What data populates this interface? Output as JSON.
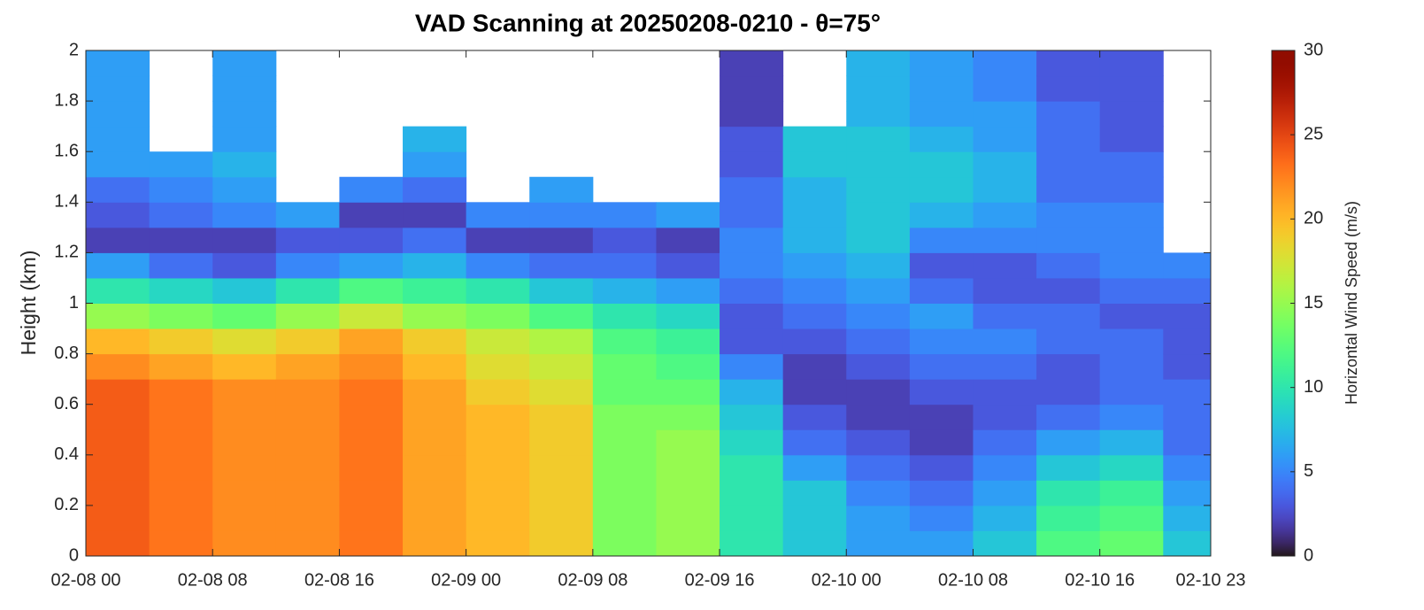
{
  "chart_data": {
    "type": "heatmap",
    "title": "VAD Scanning at 20250208-0210 - θ=75°",
    "y_label": "Height (km)",
    "colorbar_label": "Horizontal Wind Speed (m/s)",
    "colormap": "turbo",
    "x": [
      0,
      4,
      8,
      12,
      16,
      20,
      24,
      28,
      32,
      36,
      40,
      44,
      48,
      52,
      56,
      60,
      64,
      68
    ],
    "x_step": 4,
    "y": [
      0,
      0.1,
      0.2,
      0.3,
      0.4,
      0.5,
      0.6,
      0.7,
      0.8,
      0.9,
      1,
      1.1,
      1.2,
      1.3,
      1.4,
      1.5,
      1.6,
      1.7,
      1.8,
      1.9
    ],
    "y_step": 0.1,
    "values": [
      [
        24,
        24,
        24,
        24,
        24,
        24,
        24,
        22,
        20,
        15,
        10,
        6,
        2,
        3,
        4,
        6,
        6,
        6,
        6,
        6
      ],
      [
        23,
        23,
        23,
        23,
        23,
        23,
        23,
        21,
        19,
        14,
        9,
        4,
        2,
        4,
        5,
        6,
        null,
        null,
        null,
        null
      ],
      [
        22,
        22,
        22,
        22,
        22,
        22,
        22,
        20,
        18,
        13,
        8,
        3,
        2,
        5,
        6,
        7,
        6,
        6,
        6,
        6
      ],
      [
        22,
        22,
        22,
        22,
        22,
        22,
        22,
        21,
        19,
        15,
        10,
        5,
        3,
        6,
        null,
        null,
        null,
        null,
        null,
        null
      ],
      [
        23,
        23,
        23,
        23,
        23,
        23,
        23,
        22,
        21,
        17,
        12,
        6,
        3,
        2,
        5,
        null,
        null,
        null,
        null,
        null
      ],
      [
        21,
        21,
        21,
        21,
        21,
        21,
        21,
        20,
        19,
        15,
        11,
        7,
        4,
        2,
        4,
        6,
        7,
        null,
        null,
        null
      ],
      [
        20,
        20,
        20,
        20,
        20,
        20,
        19,
        18,
        17,
        14,
        10,
        5,
        2,
        5,
        null,
        null,
        null,
        null,
        null,
        null
      ],
      [
        19,
        19,
        19,
        19,
        19,
        19,
        18,
        17,
        16,
        12,
        8,
        4,
        2,
        5,
        6,
        null,
        null,
        null,
        null,
        null
      ],
      [
        14,
        14,
        14,
        14,
        14,
        14,
        13,
        13,
        12,
        10,
        7,
        4,
        3,
        5,
        null,
        null,
        null,
        null,
        null,
        null
      ],
      [
        15,
        15,
        15,
        15,
        15,
        14,
        13,
        12,
        11,
        9,
        6,
        3,
        2,
        6,
        null,
        null,
        null,
        null,
        null,
        null
      ],
      [
        10,
        10,
        10,
        10,
        9,
        8,
        7,
        5,
        3,
        3,
        4,
        5,
        5,
        4,
        4,
        3,
        3,
        2,
        2,
        2
      ],
      [
        8,
        8,
        8,
        6,
        4,
        3,
        2,
        2,
        3,
        4,
        5,
        6,
        7,
        7,
        7,
        8,
        8,
        null,
        null,
        null
      ],
      [
        6,
        6,
        5,
        4,
        3,
        2,
        2,
        3,
        4,
        5,
        6,
        7,
        8,
        8,
        8,
        8,
        8,
        7,
        7,
        7
      ],
      [
        6,
        5,
        4,
        3,
        2,
        2,
        3,
        4,
        5,
        6,
        4,
        3,
        5,
        7,
        8,
        8,
        7,
        6,
        6,
        6
      ],
      [
        8,
        7,
        6,
        5,
        4,
        3,
        3,
        4,
        5,
        4,
        3,
        3,
        5,
        6,
        7,
        7,
        6,
        6,
        5,
        5
      ],
      [
        12,
        11,
        10,
        8,
        6,
        4,
        3,
        3,
        4,
        4,
        3,
        4,
        5,
        5,
        4,
        4,
        4,
        4,
        3,
        3
      ],
      [
        13,
        12,
        11,
        9,
        7,
        5,
        4,
        4,
        4,
        3,
        4,
        5,
        5,
        5,
        4,
        4,
        3,
        3,
        3,
        3
      ],
      [
        8,
        7,
        6,
        5,
        4,
        4,
        4,
        3,
        3,
        3,
        4,
        5,
        null,
        null,
        null,
        null,
        null,
        null,
        null,
        null
      ]
    ],
    "xlim": [
      0,
      71
    ],
    "xticks": [
      {
        "value": 0,
        "label": "02-08 00"
      },
      {
        "value": 8,
        "label": "02-08 08"
      },
      {
        "value": 16,
        "label": "02-08 16"
      },
      {
        "value": 24,
        "label": "02-09 00"
      },
      {
        "value": 32,
        "label": "02-09 08"
      },
      {
        "value": 40,
        "label": "02-09 16"
      },
      {
        "value": 48,
        "label": "02-10 00"
      },
      {
        "value": 56,
        "label": "02-10 08"
      },
      {
        "value": 64,
        "label": "02-10 16"
      },
      {
        "value": 71,
        "label": "02-10 23"
      }
    ],
    "ylim": [
      0,
      2
    ],
    "yticks": [
      0,
      0.2,
      0.4,
      0.6,
      0.8,
      1,
      1.2,
      1.4,
      1.6,
      1.8,
      2
    ],
    "zlim": [
      0,
      30
    ],
    "zticks": [
      0,
      5,
      10,
      15,
      20,
      25,
      30
    ]
  }
}
